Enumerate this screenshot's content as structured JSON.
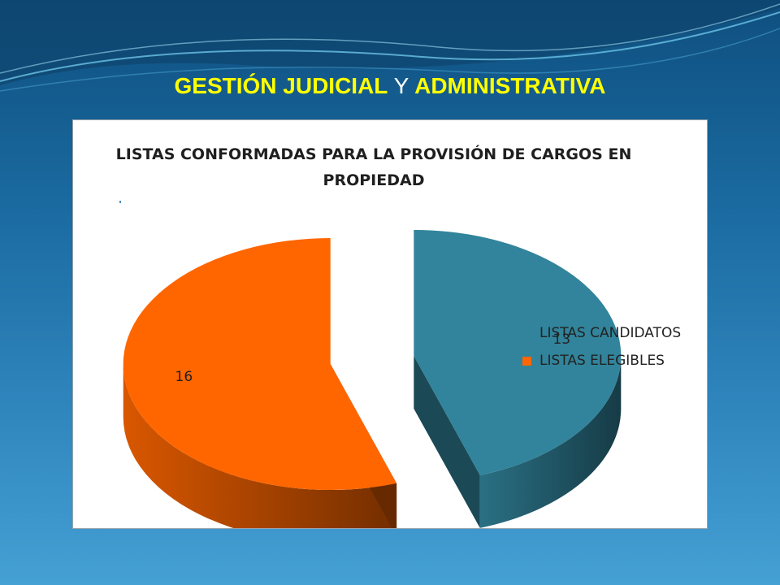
{
  "slide": {
    "title_part1": "GESTIÓN JUDICIAL",
    "title_conj": "Y",
    "title_part2": "ADMINISTRATIVA"
  },
  "chart_data": {
    "type": "pie",
    "title": "LISTAS CONFORMADAS PARA LA PROVISIÓN DE CARGOS EN PROPIEDAD",
    "title_line1": "LISTAS CONFORMADAS PARA LA PROVISIÓN DE CARGOS EN",
    "title_line2": "PROPIEDAD",
    "categories": [
      "LISTAS CANDIDATOS",
      "LISTAS ELEGIBLES"
    ],
    "values": [
      13,
      16
    ],
    "colors": [
      "#31849b",
      "#ff6600"
    ],
    "legend_placement": "right",
    "data_labels": [
      "13",
      "16"
    ]
  }
}
